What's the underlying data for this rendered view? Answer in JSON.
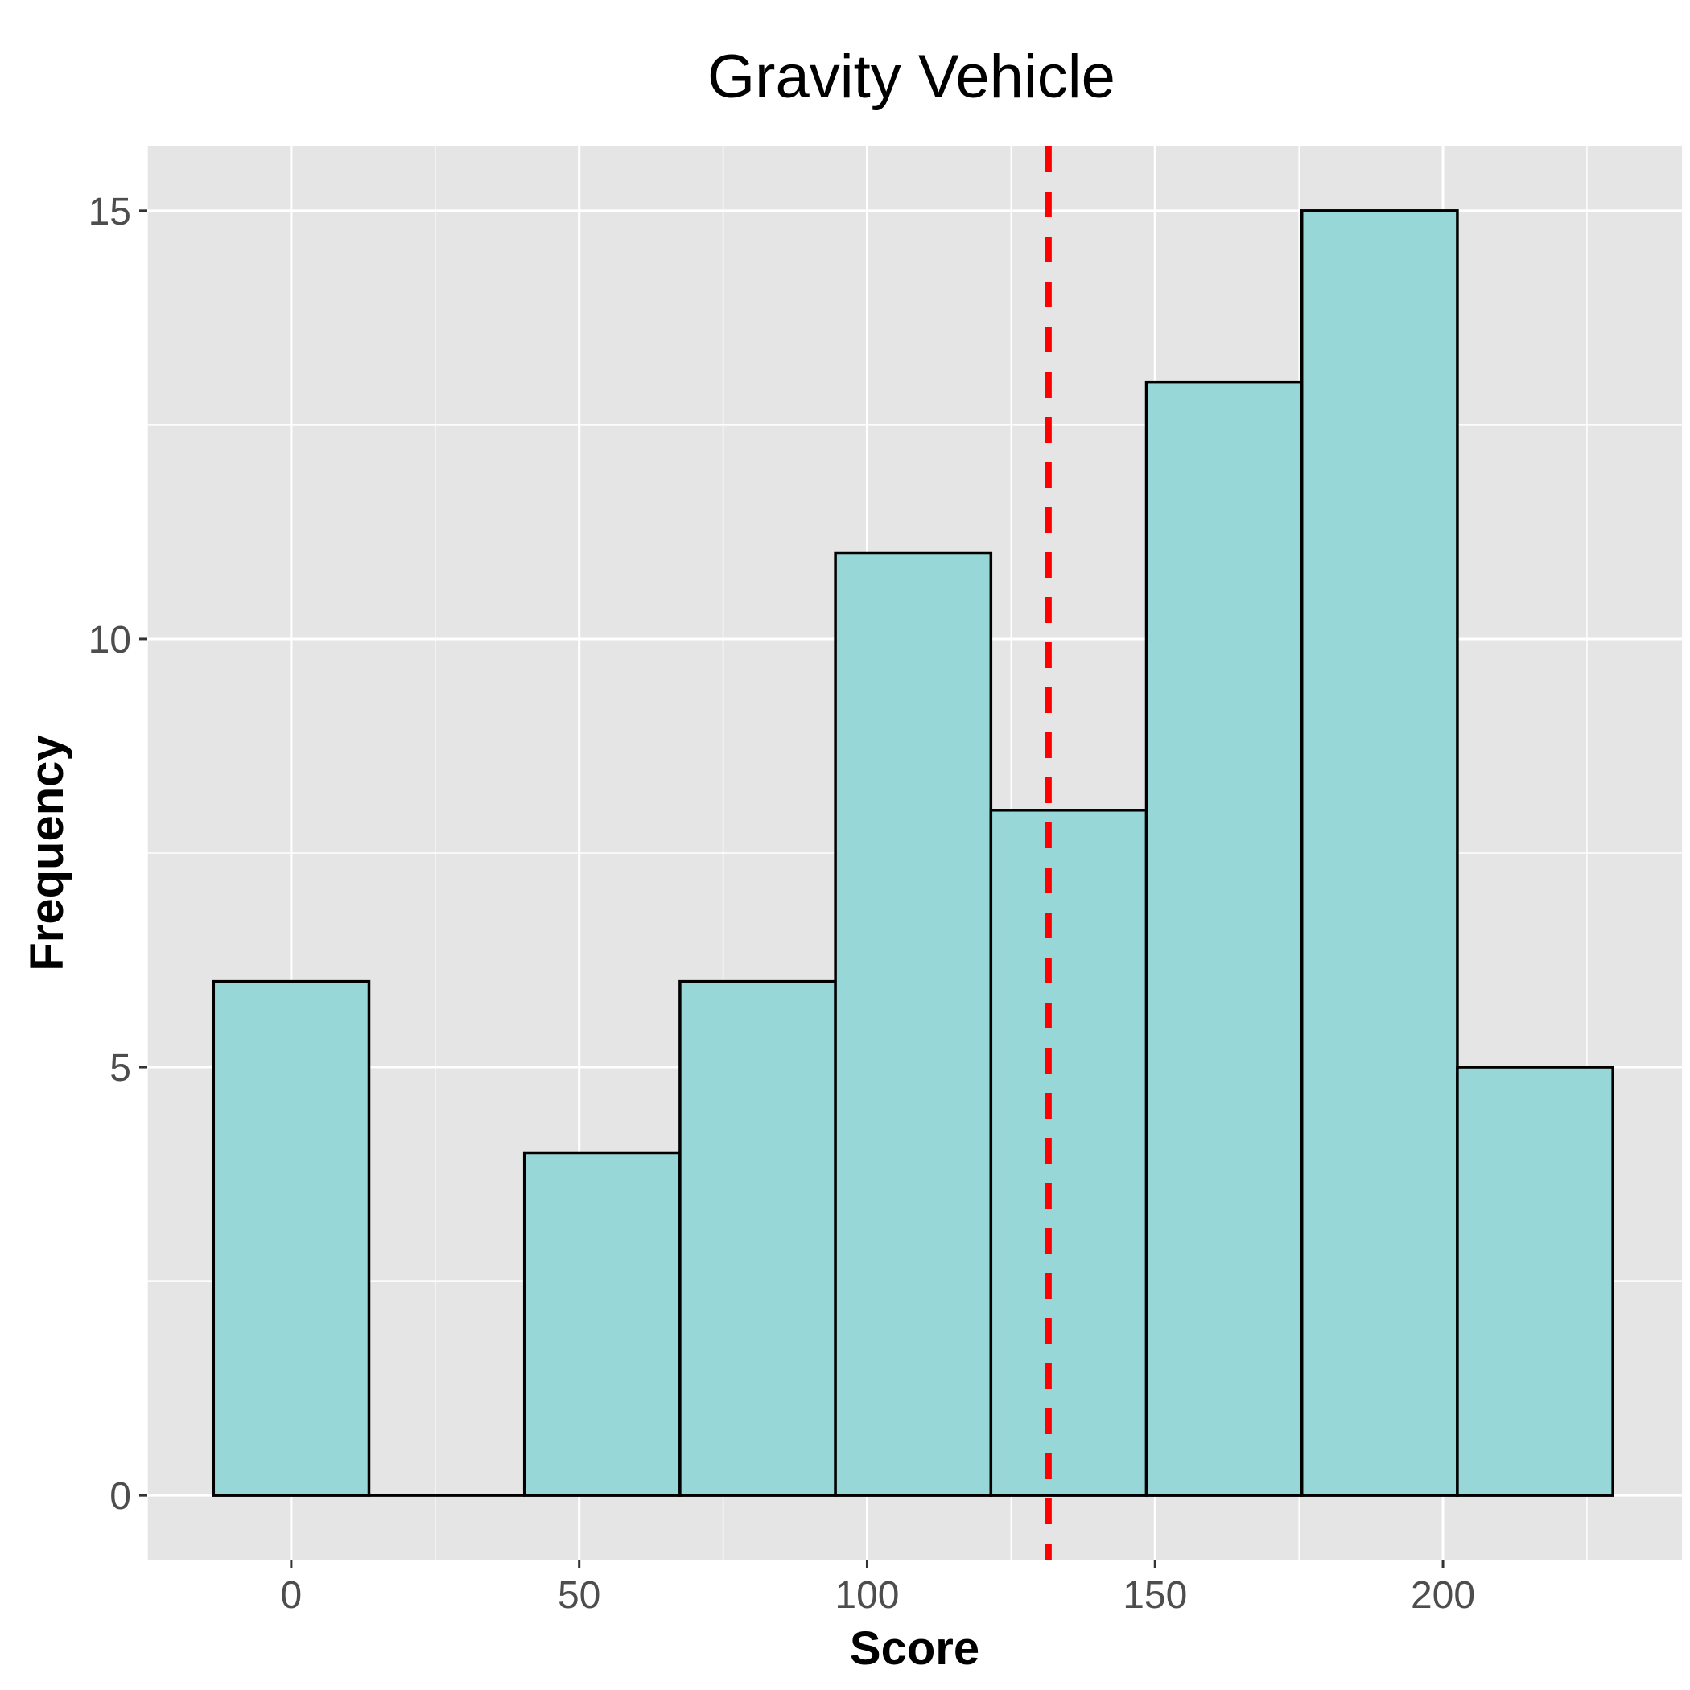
{
  "chart_data": {
    "type": "bar",
    "title": "Gravity Vehicle",
    "xlabel": "Score",
    "ylabel": "Frequency",
    "bins": [
      {
        "start": -13.5,
        "end": 13.5,
        "count": 6
      },
      {
        "start": 13.5,
        "end": 40.5,
        "count": 0
      },
      {
        "start": 40.5,
        "end": 67.5,
        "count": 4
      },
      {
        "start": 67.5,
        "end": 94.5,
        "count": 6
      },
      {
        "start": 94.5,
        "end": 121.5,
        "count": 11
      },
      {
        "start": 121.5,
        "end": 148.5,
        "count": 8
      },
      {
        "start": 148.5,
        "end": 175.5,
        "count": 13
      },
      {
        "start": 175.5,
        "end": 202.5,
        "count": 15
      },
      {
        "start": 202.5,
        "end": 229.5,
        "count": 5
      }
    ],
    "mean_line": {
      "x": 131.5,
      "color": "#ff0000",
      "style": "dashed"
    },
    "xlim": [
      -25,
      241.5
    ],
    "ylim": [
      -0.75,
      15.75
    ],
    "x_ticks": [
      0,
      50,
      100,
      150,
      200
    ],
    "x_tick_labels": [
      "0",
      "50",
      "100",
      "150",
      "200"
    ],
    "y_ticks": [
      0,
      5,
      10,
      15
    ],
    "y_tick_labels": [
      "0",
      "5",
      "10",
      "15"
    ],
    "grid": true,
    "colors": {
      "panel_background": "#e5e5e5",
      "grid": "#ffffff",
      "bar_fill": "#97d7d7",
      "bar_outline": "#000000"
    }
  }
}
